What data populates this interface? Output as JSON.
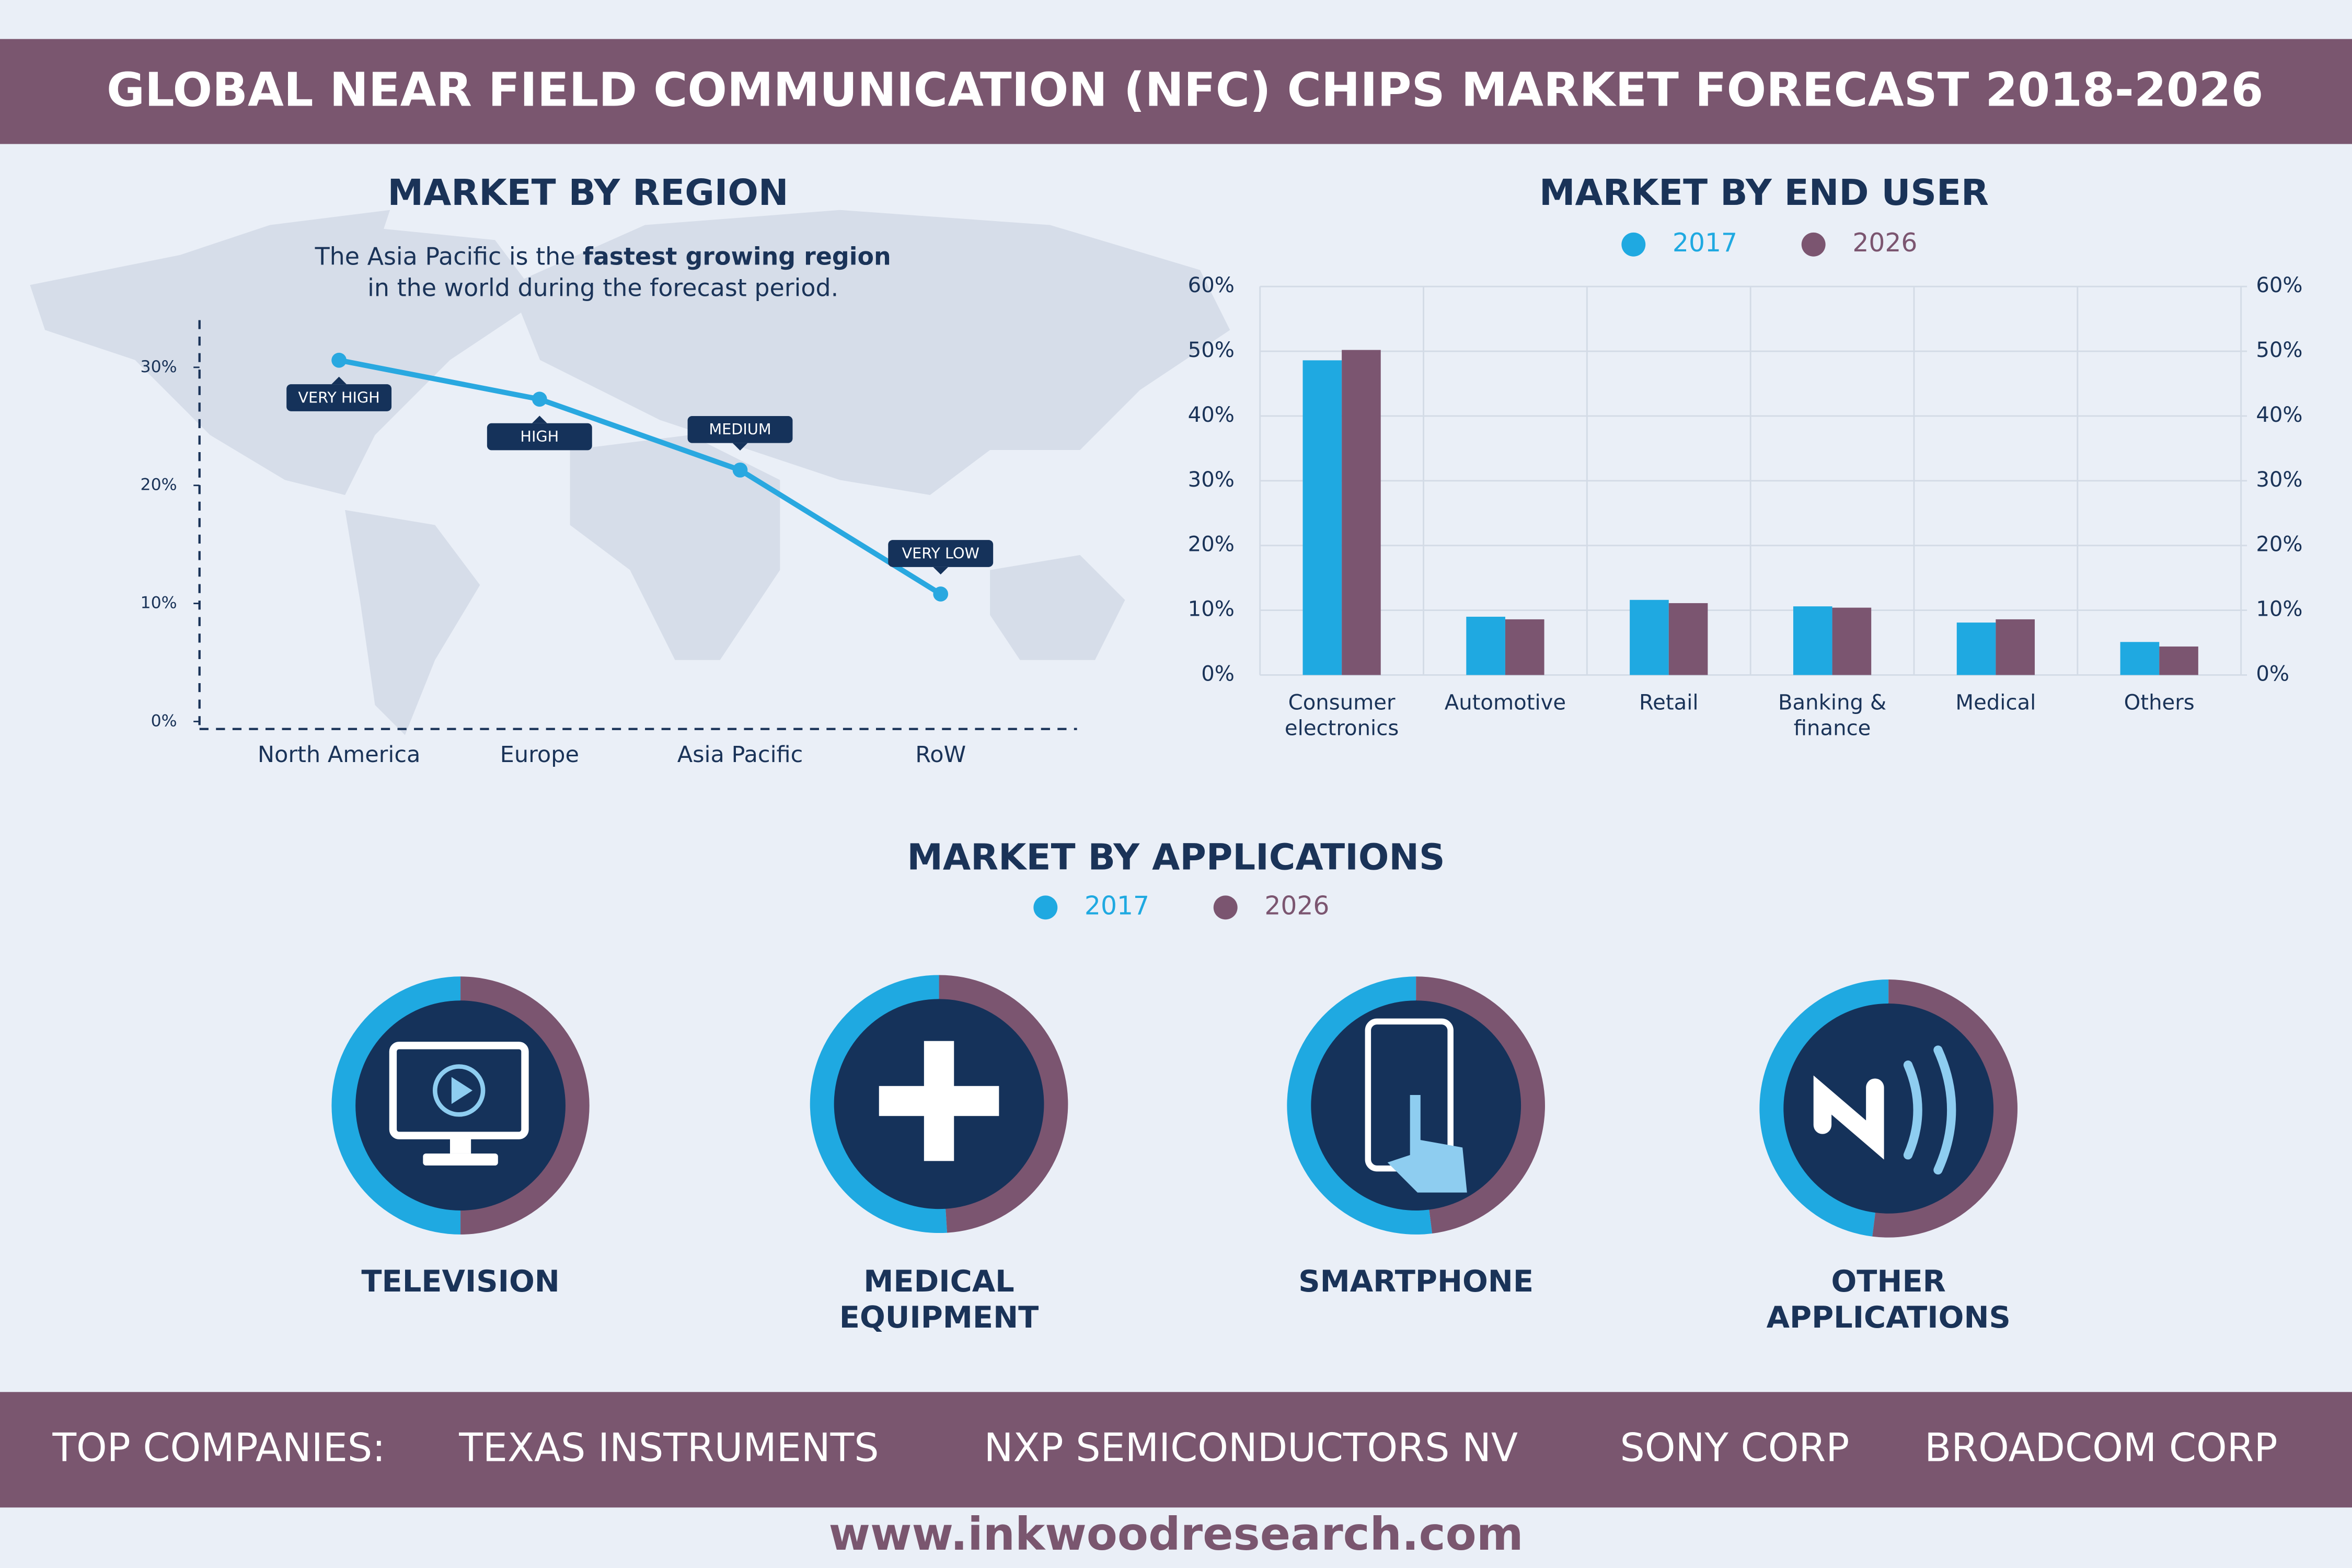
{
  "header": {
    "title": "GLOBAL NEAR FIELD COMMUNICATION (NFC) CHIPS MARKET FORECAST 2018-2026"
  },
  "chart_data": [
    {
      "type": "line",
      "title": "MARKET BY REGION",
      "subtitle": [
        "The Asia Pacific is the",
        "fastest growing region",
        "in the world during the forecast period."
      ],
      "categories": [
        "North America",
        "Europe",
        "Asia Pacific",
        "RoW"
      ],
      "values": [
        30.6,
        27.3,
        21.3,
        10.8
      ],
      "annotations": [
        "VERY HIGH",
        "HIGH",
        "MEDIUM",
        "VERY LOW"
      ],
      "color": "#29a8e0",
      "ylim": [
        0,
        34
      ],
      "yticks": [
        {
          "value": 0,
          "label": "0%"
        },
        {
          "value": 10,
          "label": "10%"
        },
        {
          "value": 20,
          "label": "20%"
        },
        {
          "value": 30,
          "label": "30%"
        }
      ]
    },
    {
      "type": "bar",
      "title": "MARKET BY END USER",
      "categories": [
        "Consumer electronics",
        "Automotive",
        "Retail",
        "Banking & finance",
        "Medical",
        "Others"
      ],
      "series": [
        {
          "name": "2017",
          "color": "#1fa9e1",
          "values": [
            48.6,
            9.0,
            11.6,
            10.6,
            8.1,
            5.1
          ]
        },
        {
          "name": "2026",
          "color": "#7b5570",
          "values": [
            50.2,
            8.6,
            11.1,
            10.4,
            8.6,
            4.4
          ]
        }
      ],
      "ylim": [
        0,
        60
      ],
      "yticks": [
        {
          "value": 0,
          "label": "0%"
        },
        {
          "value": 10,
          "label": "10%"
        },
        {
          "value": 20,
          "label": "20%"
        },
        {
          "value": 30,
          "label": "30%"
        },
        {
          "value": 40,
          "label": "40%"
        },
        {
          "value": 50,
          "label": "50%"
        },
        {
          "value": 60,
          "label": "60%"
        }
      ],
      "y2lim": [
        0,
        60
      ],
      "y2ticks": [
        {
          "value": 0,
          "label": "0%"
        },
        {
          "value": 10,
          "label": "10%"
        },
        {
          "value": 20,
          "label": "20%"
        },
        {
          "value": 30,
          "label": "30%"
        },
        {
          "value": 40,
          "label": "40%"
        },
        {
          "value": 50,
          "label": "50%"
        },
        {
          "value": 60,
          "label": "60%"
        }
      ],
      "grid": true
    },
    {
      "type": "donut",
      "title": "MARKET BY APPLICATIONS",
      "categories": [
        "TELEVISION",
        "MEDICAL EQUIPMENT",
        "SMARTPHONE",
        "OTHER APPLICATIONS"
      ],
      "series": [
        {
          "name": "2017",
          "color": "#1fa9e1",
          "values": [
            50,
            51,
            52,
            48
          ]
        },
        {
          "name": "2026",
          "color": "#7b5570",
          "values": [
            50,
            49,
            48,
            52
          ]
        }
      ]
    }
  ],
  "footer": {
    "label": "TOP COMPANIES:",
    "companies": [
      "TEXAS INSTRUMENTS",
      "NXP SEMICONDUCTORS NV",
      "SONY CORP",
      "BROADCOM CORP"
    ],
    "website": "www.inkwoodresearch.com"
  }
}
